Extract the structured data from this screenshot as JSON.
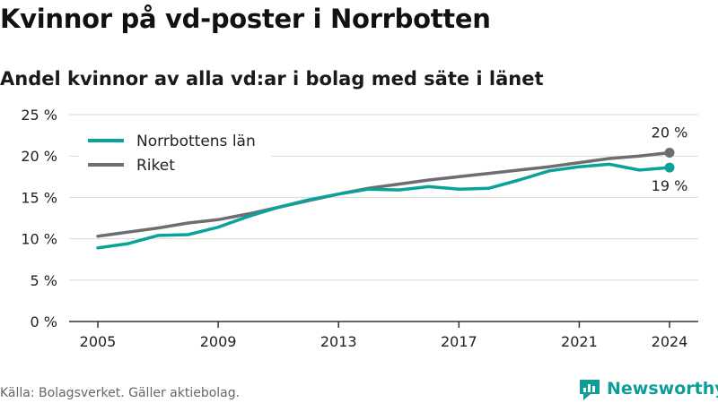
{
  "title": "Kvinnor på vd-poster i Norrbotten",
  "subtitle": "Andel kvinnor av alla vd:ar i bolag med säte i länet",
  "source": "Källa: Bolagsverket. Gäller aktiebolag.",
  "brand": "Newsworthy",
  "colors": {
    "norrbotten": "#0aa39b",
    "riket": "#6d6d72",
    "grid": "#d9d9d9",
    "axis": "#333333"
  },
  "chart_data": {
    "type": "line",
    "x": [
      2005,
      2006,
      2007,
      2008,
      2009,
      2010,
      2011,
      2012,
      2013,
      2014,
      2015,
      2016,
      2017,
      2018,
      2019,
      2020,
      2021,
      2022,
      2023,
      2024
    ],
    "series": [
      {
        "name": "Norrbottens län",
        "color": "#0aa39b",
        "values": [
          8.9,
          9.4,
          10.4,
          10.5,
          11.4,
          12.7,
          13.8,
          14.7,
          15.4,
          16.0,
          15.9,
          16.3,
          16.0,
          16.1,
          17.1,
          18.2,
          18.7,
          19.0,
          18.3,
          18.6
        ],
        "end_label": "19 %"
      },
      {
        "name": "Riket",
        "color": "#6d6d72",
        "values": [
          10.3,
          10.8,
          11.3,
          11.9,
          12.3,
          13.0,
          13.8,
          14.6,
          15.4,
          16.1,
          16.6,
          17.1,
          17.5,
          17.9,
          18.3,
          18.7,
          19.2,
          19.7,
          20.0,
          20.4
        ],
        "end_label": "20 %"
      }
    ],
    "xticks": [
      2005,
      2009,
      2013,
      2017,
      2021,
      2024
    ],
    "xtick_labels": [
      "2005",
      "2009",
      "2013",
      "2017",
      "2021",
      "2024"
    ],
    "yticks": [
      0,
      5,
      10,
      15,
      20,
      25
    ],
    "ytick_labels": [
      "0 %",
      "5 %",
      "10 %",
      "15 %",
      "20 %",
      "25 %"
    ],
    "xlim": [
      2005,
      2024
    ],
    "ylim": [
      0,
      25
    ],
    "grid": "horizontal",
    "legend_position": "top-left"
  }
}
